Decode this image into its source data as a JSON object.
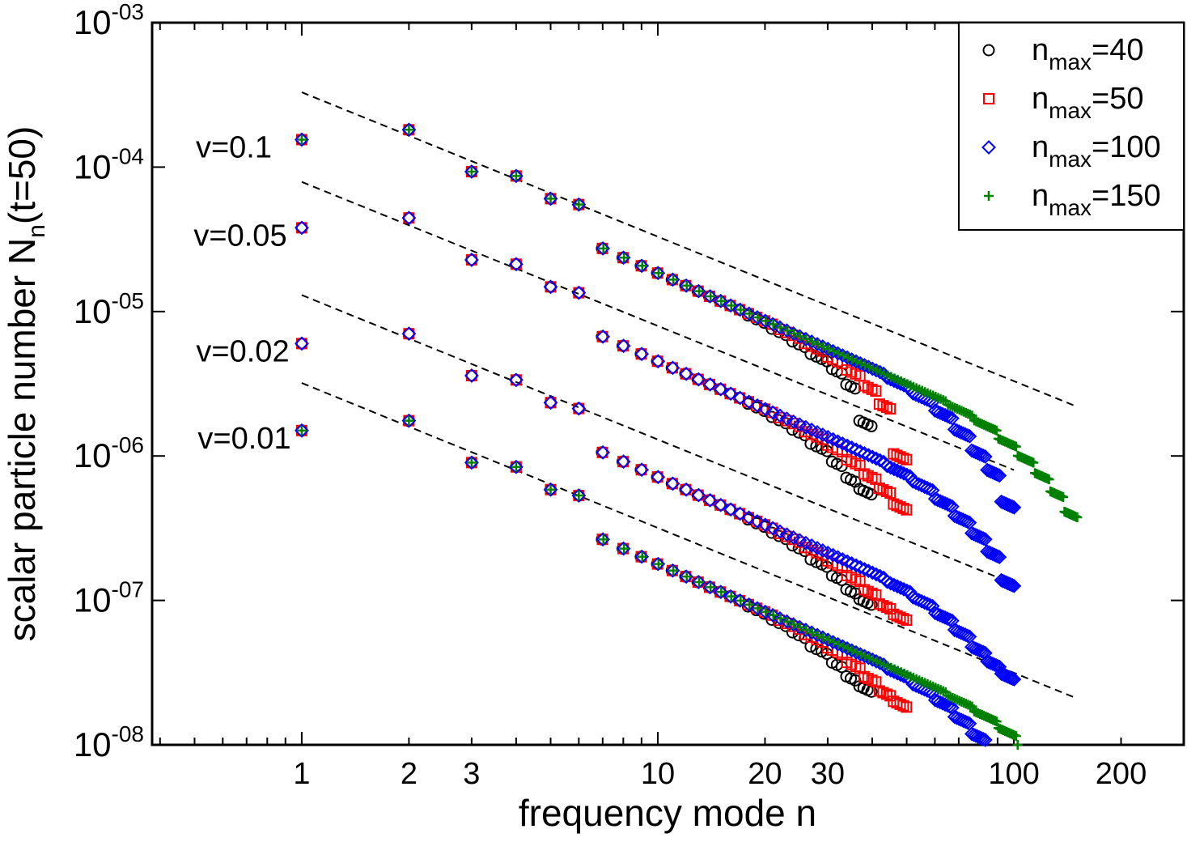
{
  "chart_data": {
    "type": "scatter",
    "title": "",
    "xlabel": "frequency mode n",
    "ylabel_main": "scalar particle number N",
    "ylabel_sub": "n",
    "ylabel_tail": "(t=50)",
    "xscale": "log",
    "yscale": "log",
    "xlim": [
      0.38,
      300
    ],
    "ylim": [
      1e-08,
      0.001
    ],
    "x_ticks": [
      1,
      2,
      3,
      10,
      20,
      30,
      100,
      200
    ],
    "x_tick_labels": [
      "1",
      "2",
      "3",
      "10",
      "20",
      "30",
      "100",
      "200"
    ],
    "y_ticks": [
      {
        "value": 1e-08,
        "base": "10",
        "exp": "-08"
      },
      {
        "value": 1e-07,
        "base": "10",
        "exp": "-07"
      },
      {
        "value": 1e-06,
        "base": "10",
        "exp": "-06"
      },
      {
        "value": 1e-05,
        "base": "10",
        "exp": "-05"
      },
      {
        "value": 0.0001,
        "base": "10",
        "exp": "-04"
      },
      {
        "value": 0.001,
        "base": "10",
        "exp": "-03"
      }
    ],
    "legend": {
      "placement": "top-right",
      "entries": [
        {
          "base": "n",
          "sub": "max",
          "tail": "=40",
          "marker": "circle",
          "color": "#000000"
        },
        {
          "base": "n",
          "sub": "max",
          "tail": "=50",
          "marker": "square",
          "color": "#ff0000"
        },
        {
          "base": "n",
          "sub": "max",
          "tail": "=100",
          "marker": "diamond",
          "color": "#0000ff"
        },
        {
          "base": "n",
          "sub": "max",
          "tail": "=150",
          "marker": "plus",
          "color": "#008000"
        }
      ]
    },
    "groups": [
      {
        "label": "v=0.1",
        "amplitude": 0.000155,
        "label_y": 0.000155,
        "fit": {
          "x": [
            1,
            150
          ],
          "y": [
            0.00033,
            2.2e-06
          ]
        },
        "series": [
          {
            "name": "n_max=40",
            "nmax": 40,
            "marker": "circle",
            "color": "#000000",
            "tail_drop": [
              1.0,
              0.97,
              0.93,
              0.88,
              0.82,
              0.75,
              0.65,
              0.4
            ]
          },
          {
            "name": "n_max=50",
            "nmax": 50,
            "marker": "square",
            "color": "#ff0000",
            "tail_drop": [
              1.0,
              0.97,
              0.93,
              0.88,
              0.82,
              0.72,
              0.6,
              0.3
            ]
          },
          {
            "name": "n_max=100",
            "nmax": 100,
            "marker": "diamond",
            "color": "#0000ff",
            "tail_drop": [
              1.0,
              0.96,
              0.9,
              0.8,
              0.68,
              0.55,
              0.45,
              0.3
            ]
          },
          {
            "name": "n_max=150",
            "nmax": 150,
            "marker": "plus",
            "color": "#008000",
            "tail_drop": [
              1.0,
              0.96,
              0.9,
              0.8,
              0.7,
              0.6,
              0.5,
              0.4
            ]
          }
        ]
      },
      {
        "label": "v=0.05",
        "amplitude": 3.8e-05,
        "label_y": 3.8e-05,
        "fit": {
          "x": [
            1,
            100
          ],
          "y": [
            7.9e-05,
            8e-07
          ]
        },
        "series": [
          {
            "name": "n_max=40",
            "nmax": 40,
            "marker": "circle",
            "color": "#000000",
            "tail_drop": [
              1.0,
              0.97,
              0.93,
              0.88,
              0.8,
              0.7,
              0.6,
              0.55
            ]
          },
          {
            "name": "n_max=50",
            "nmax": 50,
            "marker": "square",
            "color": "#ff0000",
            "tail_drop": [
              1.0,
              0.97,
              0.93,
              0.88,
              0.8,
              0.72,
              0.64,
              0.55
            ]
          },
          {
            "name": "n_max=100",
            "nmax": 100,
            "marker": "diamond",
            "color": "#0000ff",
            "tail_drop": [
              1.0,
              0.96,
              0.9,
              0.8,
              0.7,
              0.6,
              0.5,
              0.35
            ]
          }
        ]
      },
      {
        "label": "v=0.02",
        "amplitude": 6e-06,
        "label_y": 6e-06,
        "fit": {
          "x": [
            1,
            100
          ],
          "y": [
            1.3e-05,
            1.3e-07
          ]
        },
        "series": [
          {
            "name": "n_max=40",
            "nmax": 40,
            "marker": "circle",
            "color": "#000000",
            "tail_drop": [
              1.0,
              0.97,
              0.93,
              0.88,
              0.8,
              0.72,
              0.64,
              0.6
            ]
          },
          {
            "name": "n_max=50",
            "nmax": 50,
            "marker": "square",
            "color": "#ff0000",
            "tail_drop": [
              1.0,
              0.97,
              0.93,
              0.88,
              0.8,
              0.72,
              0.64,
              0.6
            ]
          },
          {
            "name": "n_max=100",
            "nmax": 100,
            "marker": "diamond",
            "color": "#0000ff",
            "tail_drop": [
              1.0,
              0.96,
              0.9,
              0.82,
              0.72,
              0.62,
              0.55,
              0.5
            ]
          }
        ]
      },
      {
        "label": "v=0.01",
        "amplitude": 1.5e-06,
        "label_y": 1.5e-06,
        "fit": {
          "x": [
            1,
            150
          ],
          "y": [
            3.2e-06,
            2.1e-08
          ]
        },
        "series": [
          {
            "name": "n_max=40",
            "nmax": 40,
            "marker": "circle",
            "color": "#000000",
            "tail_drop": [
              1.0,
              0.97,
              0.93,
              0.88,
              0.8,
              0.72,
              0.64,
              0.6
            ]
          },
          {
            "name": "n_max=50",
            "nmax": 50,
            "marker": "square",
            "color": "#ff0000",
            "tail_drop": [
              1.0,
              0.97,
              0.93,
              0.88,
              0.8,
              0.72,
              0.64,
              0.6
            ]
          },
          {
            "name": "n_max=100",
            "nmax": 100,
            "marker": "diamond",
            "color": "#0000ff",
            "tail_drop": [
              1.0,
              0.96,
              0.9,
              0.82,
              0.72,
              0.62,
              0.55,
              0.5
            ]
          },
          {
            "name": "n_max=150",
            "nmax": 150,
            "marker": "plus",
            "color": "#008000",
            "tail_drop": [
              1.0,
              0.96,
              0.9,
              0.82,
              0.72,
              0.62,
              0.55,
              0.5
            ]
          }
        ]
      }
    ],
    "low_mode_values": [
      {
        "n": 1,
        "factor": 1.0
      },
      {
        "n": 2,
        "factor": 1.17
      },
      {
        "n": 3,
        "factor": 0.6
      },
      {
        "n": 4,
        "factor": 0.56
      },
      {
        "n": 5,
        "factor": 0.39
      },
      {
        "n": 6,
        "factor": 0.355
      }
    ],
    "power_law_exponent": -1.1,
    "grid": false
  }
}
